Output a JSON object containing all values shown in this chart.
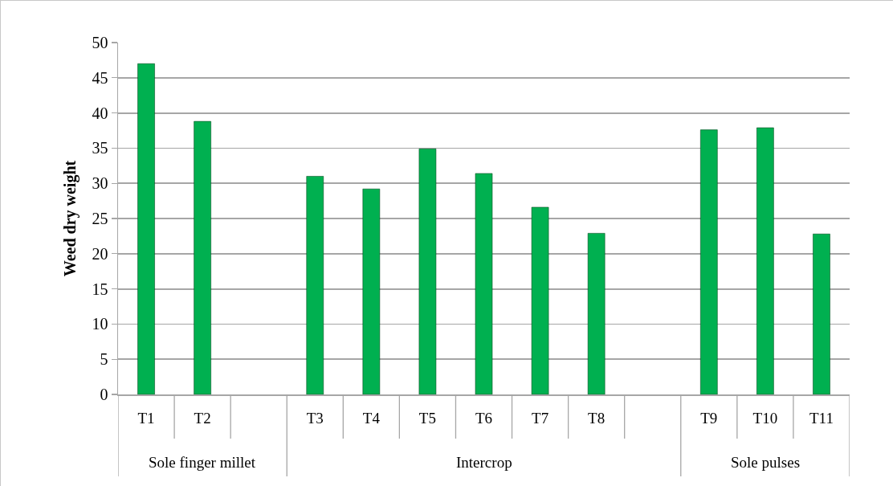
{
  "chart_data": {
    "type": "bar",
    "ylabel": "Weed dry weight",
    "categories": [
      "T1",
      "T2",
      null,
      "T3",
      "T4",
      "T5",
      "T6",
      "T7",
      "T8",
      null,
      "T9",
      "T10",
      "T11"
    ],
    "values": [
      47.0,
      38.8,
      null,
      31.0,
      29.2,
      34.9,
      31.4,
      26.6,
      22.9,
      null,
      37.6,
      37.9,
      22.8
    ],
    "color": "#00b050",
    "ylim": [
      0,
      50
    ],
    "yticks": [
      0,
      5,
      10,
      15,
      20,
      25,
      30,
      35,
      40,
      45,
      50
    ],
    "grid": "y",
    "annotations": [
      "Sole finger millet",
      "Intercrop",
      "Sole pulses"
    ]
  }
}
